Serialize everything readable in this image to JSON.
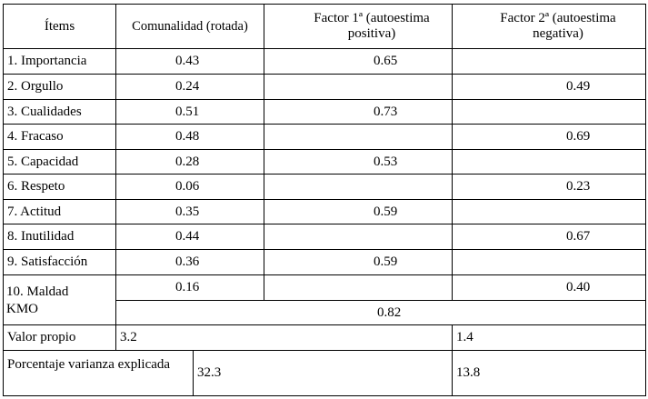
{
  "table": {
    "header": [
      "Ítems",
      "Comunalidad (rotada)",
      "Factor 1ª (autoestima positiva)",
      "Factor 2ª (autoestima negativa)"
    ],
    "rows": [
      {
        "item": "1. Importancia",
        "comunalidad": "0.43",
        "factor1": "0.65",
        "factor2": null
      },
      {
        "item": "2. Orgullo",
        "comunalidad": "0.24",
        "factor1": null,
        "factor2": "0.49"
      },
      {
        "item": "3. Cualidades",
        "comunalidad": "0.51",
        "factor1": "0.73",
        "factor2": null
      },
      {
        "item": "4. Fracaso",
        "comunalidad": "0.48",
        "factor1": null,
        "factor2": "0.69"
      },
      {
        "item": "5. Capacidad",
        "comunalidad": "0.28",
        "factor1": "0.53",
        "factor2": null
      },
      {
        "item": "6. Respeto",
        "comunalidad": "0.06",
        "factor1": null,
        "factor2": "0.23"
      },
      {
        "item": "7. Actitud",
        "comunalidad": "0.35",
        "factor1": "0.59",
        "factor2": null
      },
      {
        "item": "8. Inutilidad",
        "comunalidad": "0.44",
        "factor1": null,
        "factor2": "0.67"
      },
      {
        "item": "9. Satisfacción",
        "comunalidad": "0.36",
        "factor1": "0.59",
        "factor2": null
      },
      {
        "item": "10. Maldad",
        "comunalidad": "0.16",
        "factor1": null,
        "factor2": "0.40"
      }
    ],
    "kmo": {
      "label": "KMO",
      "value": "0.82"
    },
    "valor_propio": {
      "label": "Valor propio",
      "factor1": "3.2",
      "factor2": "1.4"
    },
    "porcentaje": {
      "label": "Porcentaje varianza explicada",
      "factor1": "32.3",
      "factor2": "13.8"
    }
  }
}
